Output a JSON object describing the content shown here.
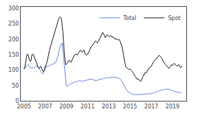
{
  "chart_data": {
    "type": "line",
    "xlim": [
      2004.7,
      2020.3
    ],
    "xticks": [
      2005,
      2007,
      2009,
      2011,
      2013,
      2015,
      2017,
      2019
    ],
    "ylim": [
      0,
      305
    ],
    "yticks": [
      0,
      50,
      100,
      150,
      200,
      250,
      300
    ],
    "y2lim": [
      0,
      305
    ],
    "y2ticks": [
      0,
      50,
      100,
      150,
      200,
      250,
      300
    ],
    "grid": false,
    "legend": "upper center",
    "series": [
      {
        "name": "Total",
        "color": "#6680e8",
        "x": [
          2005.0,
          2005.2,
          2005.4,
          2005.6,
          2005.8,
          2006.0,
          2006.2,
          2006.4,
          2006.6,
          2006.8,
          2007.0,
          2007.2,
          2007.4,
          2007.6,
          2007.8,
          2008.0,
          2008.2,
          2008.4,
          2008.6,
          2008.8,
          2009.0,
          2009.2,
          2009.4,
          2009.6,
          2009.8,
          2010.0,
          2010.2,
          2010.4,
          2010.6,
          2010.8,
          2011.0,
          2011.2,
          2011.4,
          2011.6,
          2011.8,
          2012.0,
          2012.2,
          2012.4,
          2012.6,
          2012.8,
          2013.0,
          2013.2,
          2013.4,
          2013.6,
          2013.8,
          2014.0,
          2014.2,
          2014.4,
          2014.6,
          2014.8,
          2015.0,
          2015.2,
          2015.4,
          2015.6,
          2015.8,
          2016.0,
          2016.2,
          2016.4,
          2016.6,
          2016.8,
          2017.0,
          2017.2,
          2017.4,
          2017.6,
          2017.8,
          2018.0,
          2018.2,
          2018.4,
          2018.6,
          2018.8,
          2019.0,
          2019.2,
          2019.4,
          2019.6,
          2019.8
        ],
        "values": [
          103,
          110,
          118,
          108,
          107,
          108,
          115,
          108,
          95,
          87,
          113,
          110,
          115,
          118,
          120,
          125,
          145,
          175,
          188,
          120,
          48,
          50,
          56,
          58,
          62,
          62,
          65,
          65,
          63,
          66,
          68,
          70,
          70,
          68,
          65,
          68,
          70,
          72,
          74,
          75,
          74,
          76,
          77,
          76,
          75,
          73,
          65,
          52,
          40,
          30,
          25,
          22,
          20,
          20,
          20,
          20,
          21,
          22,
          22,
          22,
          23,
          25,
          28,
          30,
          33,
          35,
          37,
          38,
          38,
          36,
          32,
          30,
          28,
          27,
          27
        ]
      },
      {
        "name": "Spot",
        "color": "#111111",
        "x": [
          2005.0,
          2005.08,
          2005.17,
          2005.25,
          2005.33,
          2005.42,
          2005.5,
          2005.58,
          2005.67,
          2005.75,
          2005.83,
          2005.92,
          2006.0,
          2006.08,
          2006.17,
          2006.25,
          2006.33,
          2006.42,
          2006.5,
          2006.58,
          2006.67,
          2006.75,
          2006.83,
          2006.92,
          2007.0,
          2007.08,
          2007.17,
          2007.25,
          2007.33,
          2007.42,
          2007.5,
          2007.58,
          2007.67,
          2007.75,
          2007.83,
          2007.92,
          2008.0,
          2008.08,
          2008.17,
          2008.25,
          2008.33,
          2008.42,
          2008.5,
          2008.58,
          2008.67,
          2008.75,
          2008.83,
          2008.92,
          2009.0,
          2009.08,
          2009.17,
          2009.25,
          2009.33,
          2009.42,
          2009.5,
          2009.58,
          2009.67,
          2009.75,
          2009.83,
          2009.92,
          2010.0,
          2010.08,
          2010.17,
          2010.25,
          2010.33,
          2010.42,
          2010.5,
          2010.58,
          2010.67,
          2010.75,
          2010.83,
          2010.92,
          2011.0,
          2011.08,
          2011.17,
          2011.25,
          2011.33,
          2011.42,
          2011.5,
          2011.58,
          2011.67,
          2011.75,
          2011.83,
          2011.92,
          2012.0,
          2012.08,
          2012.17,
          2012.25,
          2012.33,
          2012.42,
          2012.5,
          2012.58,
          2012.67,
          2012.75,
          2012.83,
          2012.92,
          2013.0,
          2013.08,
          2013.17,
          2013.25,
          2013.33,
          2013.42,
          2013.5,
          2013.58,
          2013.67,
          2013.75,
          2013.83,
          2013.92,
          2014.0,
          2014.08,
          2014.17,
          2014.25,
          2014.33,
          2014.42,
          2014.5,
          2014.58,
          2014.67,
          2014.75,
          2014.83,
          2014.92,
          2015.0,
          2015.08,
          2015.17,
          2015.25,
          2015.33,
          2015.42,
          2015.5,
          2015.58,
          2015.67,
          2015.75,
          2015.83,
          2015.92,
          2016.0,
          2016.08,
          2016.17,
          2016.25,
          2016.33,
          2016.42,
          2016.5,
          2016.58,
          2016.67,
          2016.75,
          2016.83,
          2016.92,
          2017.0,
          2017.08,
          2017.17,
          2017.25,
          2017.33,
          2017.42,
          2017.5,
          2017.58,
          2017.67,
          2017.75,
          2017.83,
          2017.92,
          2018.0,
          2018.08,
          2018.17,
          2018.25,
          2018.33,
          2018.42,
          2018.5,
          2018.58,
          2018.67,
          2018.75,
          2018.83,
          2018.92,
          2019.0,
          2019.08,
          2019.17,
          2019.25,
          2019.33,
          2019.42,
          2019.5,
          2019.58,
          2019.67,
          2019.75,
          2019.83,
          2019.92
        ],
        "values": [
          103,
          108,
          125,
          145,
          152,
          148,
          135,
          128,
          130,
          148,
          152,
          148,
          140,
          130,
          125,
          118,
          108,
          105,
          108,
          112,
          105,
          100,
          95,
          98,
          105,
          115,
          125,
          140,
          155,
          165,
          175,
          185,
          195,
          205,
          215,
          225,
          235,
          245,
          255,
          263,
          270,
          273,
          270,
          255,
          225,
          180,
          145,
          118,
          118,
          122,
          128,
          132,
          128,
          125,
          130,
          138,
          142,
          148,
          150,
          152,
          148,
          152,
          158,
          162,
          165,
          162,
          158,
          162,
          165,
          155,
          150,
          148,
          152,
          158,
          162,
          168,
          175,
          178,
          182,
          185,
          192,
          195,
          192,
          188,
          192,
          198,
          202,
          208,
          215,
          222,
          218,
          212,
          205,
          210,
          215,
          212,
          210,
          208,
          212,
          210,
          205,
          208,
          205,
          200,
          202,
          200,
          198,
          200,
          198,
          192,
          185,
          175,
          160,
          145,
          125,
          112,
          108,
          105,
          103,
          102,
          103,
          100,
          97,
          93,
          88,
          83,
          78,
          73,
          70,
          72,
          68,
          65,
          63,
          70,
          75,
          80,
          88,
          92,
          90,
          95,
          100,
          105,
          108,
          110,
          112,
          118,
          122,
          128,
          132,
          135,
          138,
          142,
          145,
          148,
          145,
          142,
          138,
          132,
          128,
          122,
          118,
          115,
          112,
          108,
          105,
          110,
          112,
          118,
          115,
          118,
          122,
          118,
          115,
          112,
          115,
          118,
          112,
          108,
          112,
          110
        ]
      }
    ]
  }
}
